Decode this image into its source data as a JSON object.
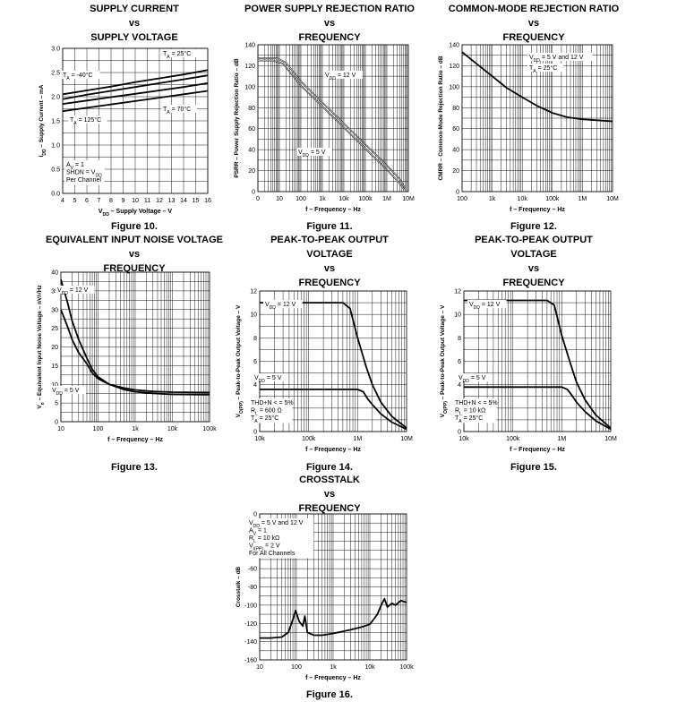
{
  "figures": [
    {
      "id": "fig10",
      "title_lines": [
        "SUPPLY CURRENT",
        "vs",
        "SUPPLY VOLTAGE"
      ],
      "caption": "Figure 10.",
      "chart_data": {
        "type": "line",
        "xscale": "linear",
        "yscale": "linear",
        "xlim": [
          4,
          16
        ],
        "ylim": [
          0,
          3.0
        ],
        "xticks": [
          4,
          5,
          6,
          7,
          8,
          9,
          10,
          11,
          12,
          13,
          14,
          15,
          16
        ],
        "xtick_labels": [
          "4",
          "5",
          "6",
          "7",
          "8",
          "9",
          "10",
          "11",
          "12",
          "13",
          "14",
          "15",
          "16"
        ],
        "yticks": [
          0,
          0.5,
          1.0,
          1.5,
          2.0,
          2.5,
          3.0
        ],
        "ytick_labels": [
          "0.0",
          "0.5",
          "1.0",
          "1.5",
          "2.0",
          "2.5",
          "3.0"
        ],
        "xlabel": "V_DD – Supply Voltage – V",
        "ylabel": "I_DD – Supply Current – mA",
        "series": [
          {
            "name": "T_A = 25°C",
            "x": [
              4,
              6,
              8,
              10,
              12,
              14,
              16
            ],
            "y": [
              2.05,
              2.13,
              2.21,
              2.3,
              2.38,
              2.46,
              2.55
            ]
          },
          {
            "name": "T_A = -40°C",
            "x": [
              4,
              6,
              8,
              10,
              12,
              14,
              16
            ],
            "y": [
              1.95,
              2.04,
              2.12,
              2.2,
              2.28,
              2.36,
              2.44
            ]
          },
          {
            "name": "T_A = 125°C",
            "x": [
              4,
              6,
              8,
              10,
              12,
              14,
              16
            ],
            "y": [
              1.85,
              1.92,
              1.99,
              2.06,
              2.13,
              2.2,
              2.28
            ]
          },
          {
            "name": "T_A = 70°C",
            "x": [
              4,
              6,
              8,
              10,
              12,
              14,
              16
            ],
            "y": [
              1.7,
              1.77,
              1.84,
              1.91,
              1.98,
              2.05,
              2.12
            ]
          }
        ],
        "annotations": [
          "T_A = 25°C",
          "T_A = -40°C",
          "T_A = 70°C",
          "T_A = 125°C"
        ],
        "notes": [
          "A_V = 1",
          "SHDN = V_DD",
          "Per Channel"
        ]
      }
    },
    {
      "id": "fig11",
      "title_lines": [
        "POWER SUPPLY REJECTION RATIO",
        "vs",
        "FREQUENCY"
      ],
      "caption": "Figure 11.",
      "chart_data": {
        "type": "line",
        "xscale": "log",
        "yscale": "linear",
        "xlim": [
          1,
          10000000
        ],
        "ylim": [
          0,
          140
        ],
        "xticks": [
          1,
          10,
          100,
          1000,
          10000,
          100000,
          1000000,
          10000000
        ],
        "xtick_labels": [
          "0",
          "10",
          "100",
          "1k",
          "10k",
          "100k",
          "1M",
          "10M"
        ],
        "yticks": [
          0,
          20,
          40,
          60,
          80,
          100,
          120,
          140
        ],
        "ytick_labels": [
          "0",
          "20",
          "40",
          "60",
          "80",
          "100",
          "120",
          "140"
        ],
        "xlabel": "f – Frequency – Hz",
        "ylabel": "PSRR – Power Supply Rejection Ratio – dB",
        "series": [
          {
            "name": "V_DD = 12 V",
            "x": [
              1,
              8,
              20,
              100,
              1000,
              10000,
              100000,
              1000000,
              4000000,
              7000000
            ],
            "y": [
              127,
              127,
              123,
              105,
              85,
              65,
              45,
              25,
              12,
              3
            ]
          },
          {
            "name": "V_DD = 5 V",
            "x": [
              1,
              5,
              15,
              100,
              1000,
              10000,
              100000,
              1000000,
              3500000,
              6500000
            ],
            "y": [
              125,
              125,
              122,
              101,
              81,
              61,
              41,
              21,
              9,
              2
            ]
          }
        ],
        "annotations": [
          "V_DD = 12 V",
          "V_DD = 5 V"
        ]
      }
    },
    {
      "id": "fig12",
      "title_lines": [
        "COMMON-MODE REJECTION RATIO",
        "vs",
        "FREQUENCY"
      ],
      "caption": "Figure 12.",
      "chart_data": {
        "type": "line",
        "xscale": "log",
        "yscale": "linear",
        "xlim": [
          100,
          10000000
        ],
        "ylim": [
          0,
          140
        ],
        "xticks": [
          100,
          1000,
          10000,
          100000,
          1000000,
          10000000
        ],
        "xtick_labels": [
          "100",
          "1k",
          "10k",
          "100k",
          "1M",
          "10M"
        ],
        "yticks": [
          0,
          20,
          40,
          60,
          80,
          100,
          120,
          140
        ],
        "ytick_labels": [
          "0",
          "20",
          "40",
          "60",
          "80",
          "100",
          "120",
          "140"
        ],
        "xlabel": "f – Frequency – Hz",
        "ylabel": "CMRR – Common-Mode Rejection Ratio – dB",
        "series": [
          {
            "name": "V_DD = 5 V and 12 V",
            "x": [
              100,
              300,
              1000,
              3000,
              10000,
              30000,
              100000,
              300000,
              1000000,
              3000000,
              10000000
            ],
            "y": [
              133,
              122,
              110,
              99,
              90,
              82,
              75,
              71,
              69,
              68,
              67
            ]
          }
        ],
        "annotations": [
          "V_DD = 5 V and 12 V",
          "T_A = 25°C"
        ]
      }
    },
    {
      "id": "fig13",
      "title_lines": [
        "EQUIVALENT INPUT NOISE VOLTAGE",
        "vs",
        "FREQUENCY"
      ],
      "caption": "Figure 13.",
      "chart_data": {
        "type": "line",
        "xscale": "log",
        "yscale": "linear",
        "xlim": [
          10,
          100000
        ],
        "ylim": [
          0,
          40
        ],
        "xticks": [
          10,
          100,
          1000,
          10000,
          100000
        ],
        "xtick_labels": [
          "10",
          "100",
          "1k",
          "10k",
          "100k"
        ],
        "yticks": [
          0,
          5,
          10,
          15,
          20,
          25,
          30,
          35,
          40
        ],
        "ytick_labels": [
          "0",
          "5",
          "10",
          "15",
          "20",
          "25",
          "30",
          "35",
          "40"
        ],
        "xlabel": "f – Frequency – Hz",
        "ylabel": "V_n – Equivalent Input Noise Voltage – nV/√Hz",
        "series": [
          {
            "name": "V_DD = 12 V",
            "x": [
              10,
              15,
              20,
              30,
              50,
              70,
              100,
              200,
              500,
              1000,
              3000,
              10000,
              100000
            ],
            "y": [
              38,
              32,
              27,
              22,
              17,
              14,
              12,
              10,
              8.6,
              8,
              7.6,
              7.3,
              7.2
            ]
          },
          {
            "name": "V_DD = 5 V",
            "x": [
              10,
              15,
              20,
              30,
              50,
              70,
              100,
              200,
              500,
              1000,
              3000,
              10000,
              100000
            ],
            "y": [
              30,
              25.5,
              22,
              18.5,
              15.5,
              13,
              11.5,
              10,
              9,
              8.5,
              8.1,
              7.9,
              7.8
            ]
          }
        ],
        "annotations": [
          "V_DD = 12 V",
          "V_DD = 5 V"
        ]
      }
    },
    {
      "id": "fig14",
      "title_lines": [
        "PEAK-TO-PEAK OUTPUT",
        "VOLTAGE",
        "vs",
        "FREQUENCY"
      ],
      "caption": "Figure 14.",
      "chart_data": {
        "type": "line",
        "xscale": "log",
        "yscale": "linear",
        "xlim": [
          10000,
          10000000
        ],
        "ylim": [
          0,
          12
        ],
        "xticks": [
          10000,
          100000,
          1000000,
          10000000
        ],
        "xtick_labels": [
          "10k",
          "100k",
          "1M",
          "10M"
        ],
        "yticks": [
          0,
          2,
          4,
          6,
          8,
          10,
          12
        ],
        "ytick_labels": [
          "0",
          "2",
          "4",
          "6",
          "8",
          "10",
          "12"
        ],
        "xlabel": "f – Frequency – Hz",
        "ylabel": "V_O(PP) – Peak-to-Peak Output Voltage – V",
        "series": [
          {
            "name": "V_DD = 12 V",
            "x": [
              10000,
              100000,
              500000,
              700000,
              1000000,
              1500000,
              2000000,
              3000000,
              5000000,
              10000000
            ],
            "y": [
              11,
              11,
              11,
              10.5,
              8,
              5.5,
              4,
              2.5,
              1.3,
              0.3
            ]
          },
          {
            "name": "V_DD = 5 V",
            "x": [
              10000,
              100000,
              1000000,
              1300000,
              1600000,
              2000000,
              3000000,
              5000000,
              10000000
            ],
            "y": [
              3.6,
              3.6,
              3.6,
              3.4,
              2.8,
              2.3,
              1.5,
              0.8,
              0.2
            ]
          }
        ],
        "annotations": [
          "V_DD = 12 V",
          "V_DD = 5 V"
        ],
        "notes": [
          "THD+N < = 5%",
          "R_L = 600 Ω",
          "T_A = 25°C"
        ]
      }
    },
    {
      "id": "fig15",
      "title_lines": [
        "PEAK-TO-PEAK OUTPUT",
        "VOLTAGE",
        "vs",
        "FREQUENCY"
      ],
      "caption": "Figure 15.",
      "chart_data": {
        "type": "line",
        "xscale": "log",
        "yscale": "linear",
        "xlim": [
          10000,
          10000000
        ],
        "ylim": [
          0,
          12
        ],
        "xticks": [
          10000,
          100000,
          1000000,
          10000000
        ],
        "xtick_labels": [
          "10k",
          "100k",
          "1M",
          "10M"
        ],
        "yticks": [
          0,
          2,
          4,
          6,
          8,
          10,
          12
        ],
        "ytick_labels": [
          "0",
          "2",
          "4",
          "6",
          "8",
          "10",
          "12"
        ],
        "xlabel": "f – Frequency – Hz",
        "ylabel": "V_O(PP) – Peak-to-Peak Output Voltage – V",
        "series": [
          {
            "name": "V_DD = 12 V",
            "x": [
              10000,
              100000,
              500000,
              700000,
              1000000,
              1500000,
              2000000,
              3000000,
              5000000,
              10000000
            ],
            "y": [
              11.2,
              11.2,
              11.2,
              10.8,
              8.2,
              5.8,
              4.2,
              2.7,
              1.4,
              0.3
            ]
          },
          {
            "name": "V_DD = 5 V",
            "x": [
              10000,
              100000,
              1000000,
              1300000,
              1600000,
              2000000,
              3000000,
              5000000,
              10000000
            ],
            "y": [
              3.8,
              3.8,
              3.8,
              3.6,
              3.1,
              2.5,
              1.7,
              0.9,
              0.2
            ]
          }
        ],
        "annotations": [
          "V_DD = 12 V",
          "V_DD = 5 V"
        ],
        "notes": [
          "THD+N < = 5%",
          "R_L = 10 kΩ",
          "T_A = 25°C"
        ]
      }
    },
    {
      "id": "fig16",
      "title_lines": [
        "CROSSTALK",
        "vs",
        "FREQUENCY"
      ],
      "caption": "Figure 16.",
      "chart_data": {
        "type": "line",
        "xscale": "log",
        "yscale": "linear",
        "xlim": [
          10,
          100000
        ],
        "ylim": [
          -160,
          0
        ],
        "xticks": [
          10,
          100,
          1000,
          10000,
          100000
        ],
        "xtick_labels": [
          "10",
          "100",
          "1k",
          "10k",
          "100k"
        ],
        "yticks": [
          0,
          -20,
          -40,
          -60,
          -80,
          -100,
          -120,
          -140,
          -160
        ],
        "ytick_labels": [
          "0",
          "-20",
          "-40",
          "-60",
          "-80",
          "-100",
          "-120",
          "-140",
          "-160"
        ],
        "xlabel": "f – Frequency – Hz",
        "ylabel": "Crosstalk – dB",
        "series": [
          {
            "name": "Crosstalk",
            "x": [
              10,
              20,
              40,
              60,
              80,
              95,
              120,
              150,
              170,
              200,
              300,
              500,
              1000,
              3000,
              6000,
              10000,
              13000,
              16000,
              20000,
              25000,
              30000,
              40000,
              50000,
              70000,
              100000
            ],
            "y": [
              -136,
              -136,
              -135,
              -130,
              -116,
              -106,
              -118,
              -123,
              -112,
              -130,
              -133,
              -133,
              -131,
              -127,
              -124,
              -121,
              -115,
              -110,
              -101,
              -93,
              -102,
              -98,
              -100,
              -95,
              -97
            ]
          }
        ],
        "notes": [
          "V_DD = 5 V and 12 V",
          "A_V = 1",
          "R_L = 10 kΩ",
          "V_I(PP) = 2 V",
          "For All Channels"
        ]
      }
    }
  ]
}
